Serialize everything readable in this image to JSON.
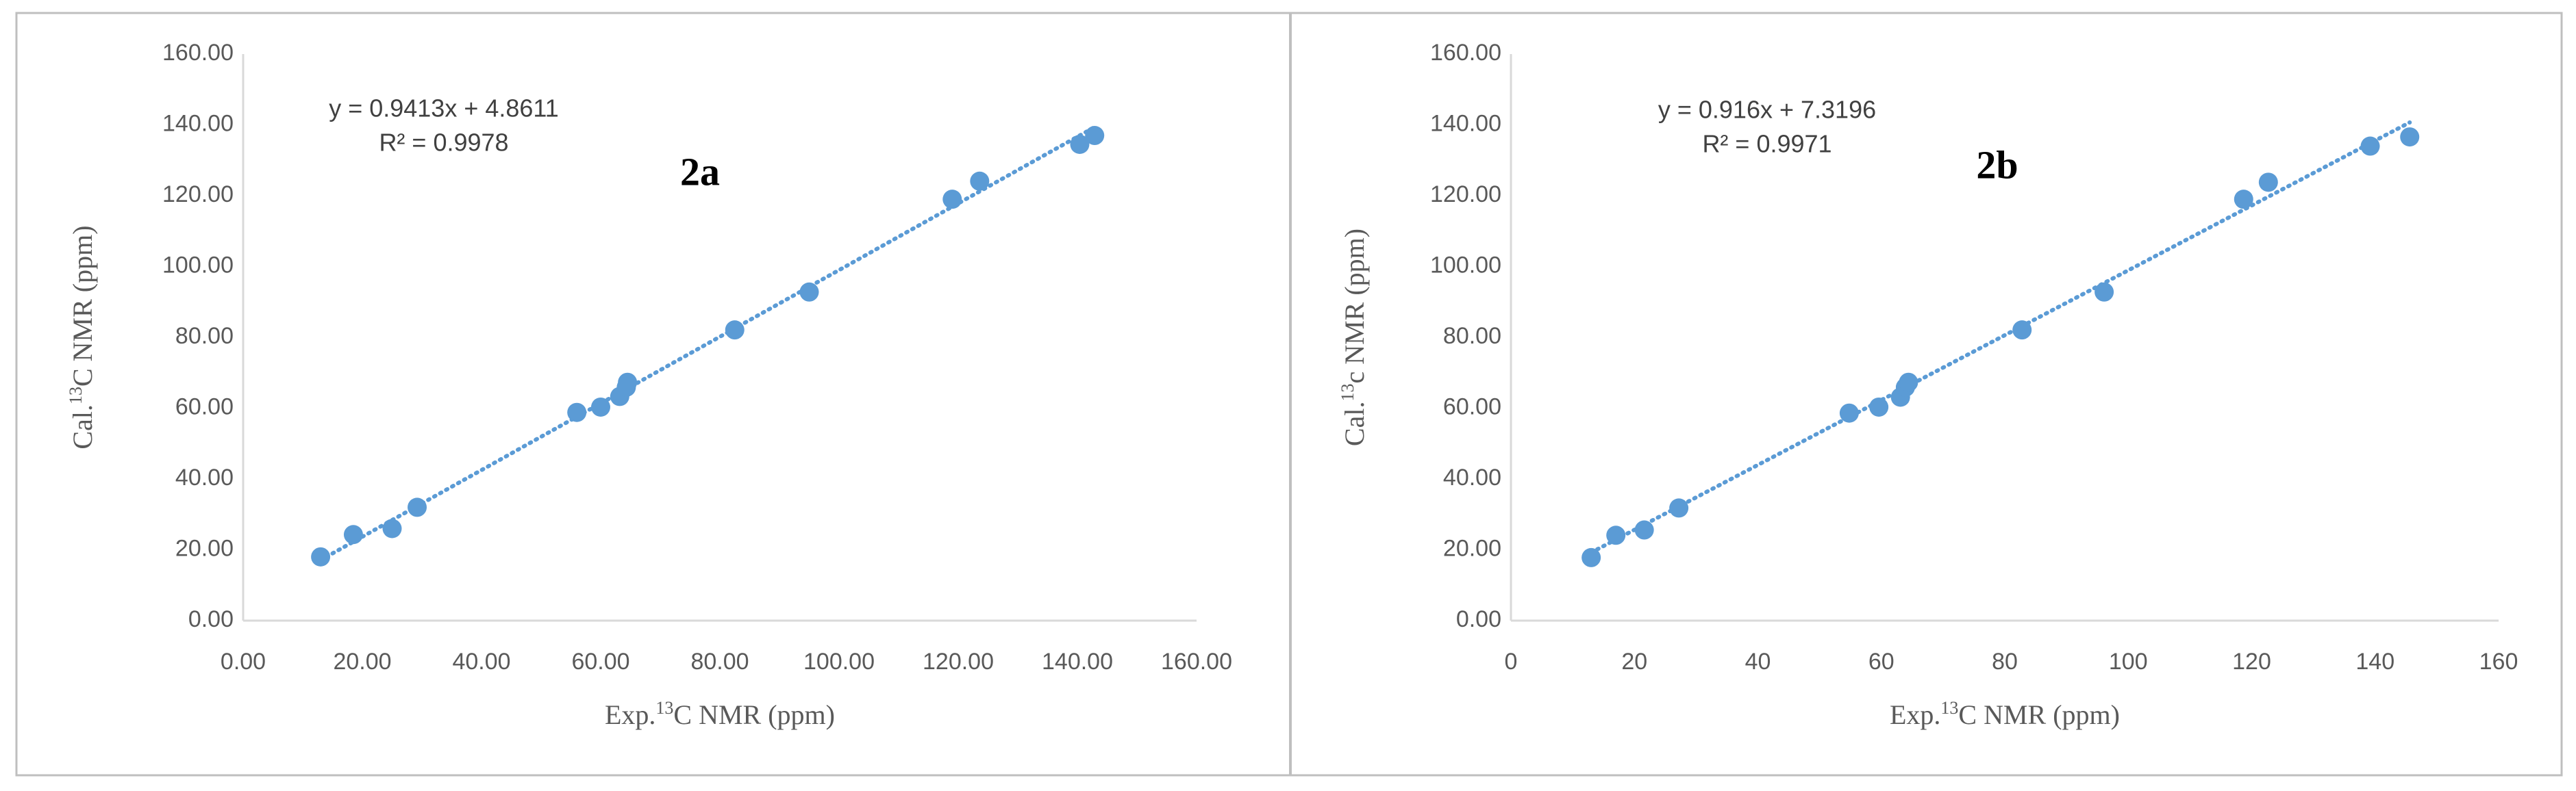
{
  "chart_data": [
    {
      "type": "scatter",
      "title": "2a",
      "x_label": [
        "Exp.",
        "13",
        "C NMR (ppm)"
      ],
      "y_label": [
        "Cal.",
        "13",
        "C NMR (ppm)"
      ],
      "x": [
        13,
        18.5,
        25,
        29.2,
        56,
        60,
        63.2,
        64.3,
        64.5,
        82.5,
        95,
        119,
        123.6,
        140.4,
        142.9
      ],
      "values": [
        18,
        24.3,
        26,
        32,
        58.8,
        60.3,
        63.3,
        65.9,
        67.3,
        82.1,
        92.8,
        119,
        124.1,
        134.5,
        137
      ],
      "color": "#5b9bd5",
      "xlim": [
        0,
        160
      ],
      "ylim": [
        0,
        160
      ],
      "xticks": [
        {
          "value": 0,
          "label": "0.00"
        },
        {
          "value": 20,
          "label": "20.00"
        },
        {
          "value": 40,
          "label": "40.00"
        },
        {
          "value": 60,
          "label": "60.00"
        },
        {
          "value": 80,
          "label": "80.00"
        },
        {
          "value": 100,
          "label": "100.00"
        },
        {
          "value": 120,
          "label": "120.00"
        },
        {
          "value": 140,
          "label": "140.00"
        },
        {
          "value": 160,
          "label": "160.00"
        }
      ],
      "yticks": [
        {
          "value": 0,
          "label": "0.00"
        },
        {
          "value": 20,
          "label": "20.00"
        },
        {
          "value": 40,
          "label": "40.00"
        },
        {
          "value": 60,
          "label": "60.00"
        },
        {
          "value": 80,
          "label": "80.00"
        },
        {
          "value": 100,
          "label": "100.00"
        },
        {
          "value": 120,
          "label": "120.00"
        },
        {
          "value": 140,
          "label": "140.00"
        },
        {
          "value": 160,
          "label": "160.00"
        }
      ],
      "trendline": {
        "equation": "y = 0.9413x + 4.8611",
        "r2_label": "R² = 0.9978",
        "slope": 0.9413,
        "intercept": 4.8611
      }
    },
    {
      "type": "scatter",
      "title": "2b",
      "x_label": [
        "Exp.",
        "13",
        "C NMR (ppm)"
      ],
      "y_label": [
        "Cal.",
        "13",
        "c NMR (ppm)"
      ],
      "x": [
        13,
        17,
        21.6,
        27.2,
        54.8,
        59.6,
        63.1,
        63.9,
        64.4,
        82.8,
        96.1,
        118.7,
        122.7,
        139.2,
        145.6
      ],
      "values": [
        17.8,
        24.1,
        25.6,
        31.8,
        58.6,
        60.3,
        63.1,
        65.9,
        67.3,
        82.1,
        92.8,
        119,
        123.8,
        134,
        136.6
      ],
      "color": "#5b9bd5",
      "xlim": [
        0,
        160
      ],
      "ylim": [
        0,
        160
      ],
      "xticks": [
        0,
        20,
        40,
        60,
        80,
        100,
        120,
        140,
        160
      ],
      "yticks": [
        {
          "value": 0,
          "label": "0.00"
        },
        {
          "value": 20,
          "label": "20.00"
        },
        {
          "value": 40,
          "label": "40.00"
        },
        {
          "value": 60,
          "label": "60.00"
        },
        {
          "value": 80,
          "label": "80.00"
        },
        {
          "value": 100,
          "label": "100.00"
        },
        {
          "value": 120,
          "label": "120.00"
        },
        {
          "value": 140,
          "label": "140.00"
        },
        {
          "value": 160,
          "label": "160.00"
        }
      ],
      "trendline": {
        "equation": "y = 0.916x + 7.3196",
        "r2_label": "R² = 0.9971",
        "slope": 0.916,
        "intercept": 7.3196
      }
    }
  ]
}
